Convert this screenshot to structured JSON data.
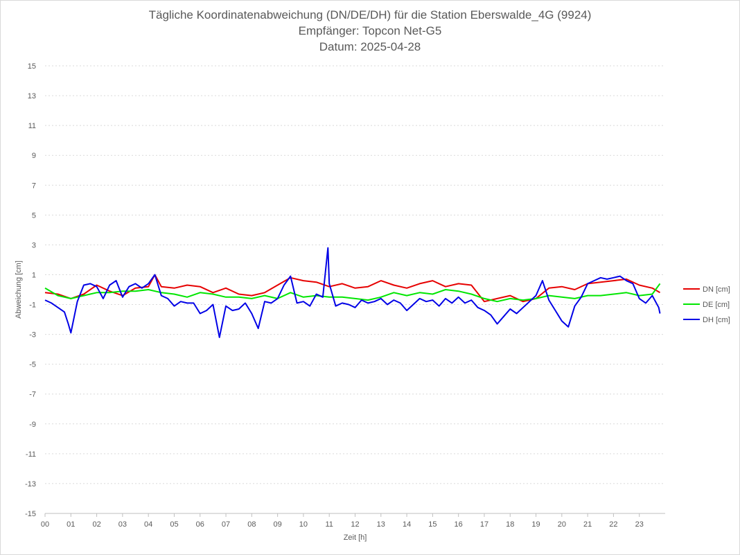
{
  "chart_data": {
    "type": "line",
    "title": "Tägliche Koordinatenabweichung (DN/DE/DH) für die Station Eberswalde_4G (9924)",
    "subtitle_1": "Empfänger: Topcon Net-G5",
    "subtitle_2": "Datum: 2025-04-28",
    "xlabel": "Zeit [h]",
    "ylabel": "Abweichung [cm]",
    "xlim": [
      0,
      24
    ],
    "ylim": [
      -15,
      15
    ],
    "x_ticks": [
      "00",
      "01",
      "02",
      "03",
      "04",
      "05",
      "06",
      "07",
      "08",
      "09",
      "10",
      "11",
      "12",
      "13",
      "14",
      "15",
      "16",
      "17",
      "18",
      "19",
      "20",
      "21",
      "22",
      "23"
    ],
    "y_ticks": [
      15,
      13,
      11,
      9,
      7,
      5,
      3,
      1,
      -1,
      -3,
      -5,
      -7,
      -9,
      -11,
      -13,
      -15
    ],
    "grid": true,
    "legend_position": "right",
    "series": [
      {
        "name": "DN [cm]",
        "color": "#e60000",
        "x": [
          0,
          0.5,
          1,
          1.5,
          2,
          2.5,
          3,
          3.5,
          4,
          4.25,
          4.5,
          5,
          5.5,
          6,
          6.5,
          7,
          7.5,
          8,
          8.5,
          9,
          9.5,
          10,
          10.5,
          11,
          11.5,
          12,
          12.5,
          13,
          13.5,
          14,
          14.5,
          15,
          15.5,
          16,
          16.5,
          17,
          17.5,
          18,
          18.5,
          19,
          19.5,
          20,
          20.5,
          21,
          21.5,
          22,
          22.5,
          23,
          23.5,
          23.8
        ],
        "y": [
          -0.2,
          -0.3,
          -0.6,
          -0.3,
          0.3,
          -0.1,
          -0.4,
          0.1,
          0.2,
          1.0,
          0.2,
          0.1,
          0.3,
          0.2,
          -0.2,
          0.1,
          -0.3,
          -0.4,
          -0.2,
          0.3,
          0.8,
          0.6,
          0.5,
          0.2,
          0.4,
          0.1,
          0.2,
          0.6,
          0.3,
          0.1,
          0.4,
          0.6,
          0.2,
          0.4,
          0.3,
          -0.8,
          -0.6,
          -0.4,
          -0.8,
          -0.6,
          0.1,
          0.2,
          0.0,
          0.4,
          0.5,
          0.6,
          0.7,
          0.3,
          0.1,
          -0.2
        ]
      },
      {
        "name": "DE [cm]",
        "color": "#00e600",
        "x": [
          0,
          0.5,
          1,
          1.5,
          2,
          2.5,
          3,
          3.5,
          4,
          4.5,
          5,
          5.5,
          6,
          6.5,
          7,
          7.5,
          8,
          8.5,
          9,
          9.5,
          10,
          10.5,
          11,
          11.5,
          12,
          12.5,
          13,
          13.5,
          14,
          14.5,
          15,
          15.5,
          16,
          16.5,
          17,
          17.5,
          18,
          18.5,
          19,
          19.5,
          20,
          20.5,
          21,
          21.5,
          22,
          22.5,
          23,
          23.5,
          23.8
        ],
        "y": [
          0.1,
          -0.4,
          -0.6,
          -0.4,
          -0.2,
          -0.2,
          -0.1,
          -0.1,
          0.0,
          -0.2,
          -0.3,
          -0.5,
          -0.2,
          -0.3,
          -0.5,
          -0.5,
          -0.6,
          -0.4,
          -0.6,
          -0.2,
          -0.5,
          -0.4,
          -0.5,
          -0.5,
          -0.6,
          -0.7,
          -0.5,
          -0.2,
          -0.4,
          -0.2,
          -0.3,
          0.0,
          -0.1,
          -0.3,
          -0.6,
          -0.8,
          -0.6,
          -0.7,
          -0.6,
          -0.4,
          -0.5,
          -0.6,
          -0.4,
          -0.4,
          -0.3,
          -0.2,
          -0.4,
          -0.3,
          0.4
        ]
      },
      {
        "name": "DH [cm]",
        "color": "#0000e6",
        "x": [
          0,
          0.25,
          0.5,
          0.75,
          0.9,
          1.0,
          1.25,
          1.5,
          1.75,
          2.0,
          2.25,
          2.5,
          2.75,
          3.0,
          3.25,
          3.5,
          3.75,
          4.0,
          4.25,
          4.5,
          4.75,
          5.0,
          5.25,
          5.5,
          5.75,
          6.0,
          6.25,
          6.5,
          6.75,
          7.0,
          7.25,
          7.5,
          7.75,
          8.0,
          8.25,
          8.5,
          8.75,
          9.0,
          9.25,
          9.5,
          9.75,
          10.0,
          10.25,
          10.5,
          10.75,
          10.95,
          11.0,
          11.25,
          11.5,
          11.75,
          12.0,
          12.25,
          12.5,
          12.75,
          13.0,
          13.25,
          13.5,
          13.75,
          14.0,
          14.25,
          14.5,
          14.75,
          15.0,
          15.25,
          15.5,
          15.75,
          16.0,
          16.25,
          16.5,
          16.75,
          17.0,
          17.25,
          17.5,
          17.75,
          18.0,
          18.25,
          18.5,
          18.75,
          19.0,
          19.25,
          19.5,
          19.75,
          20.0,
          20.25,
          20.5,
          20.75,
          21.0,
          21.25,
          21.5,
          21.75,
          22.0,
          22.25,
          22.5,
          22.75,
          23.0,
          23.25,
          23.5,
          23.75,
          23.8
        ],
        "y": [
          -0.7,
          -0.9,
          -1.2,
          -1.5,
          -2.3,
          -2.9,
          -0.8,
          0.3,
          0.4,
          0.2,
          -0.6,
          0.3,
          0.6,
          -0.5,
          0.2,
          0.4,
          0.1,
          0.4,
          1.0,
          -0.4,
          -0.6,
          -1.1,
          -0.8,
          -0.9,
          -0.9,
          -1.6,
          -1.4,
          -1.0,
          -3.2,
          -1.1,
          -1.4,
          -1.3,
          -0.9,
          -1.6,
          -2.6,
          -0.8,
          -0.9,
          -0.6,
          0.3,
          0.9,
          -0.9,
          -0.8,
          -1.1,
          -0.3,
          -0.5,
          2.8,
          0.4,
          -1.1,
          -0.9,
          -1.0,
          -1.2,
          -0.7,
          -0.9,
          -0.8,
          -0.6,
          -1.0,
          -0.7,
          -0.9,
          -1.4,
          -1.0,
          -0.6,
          -0.8,
          -0.7,
          -1.1,
          -0.6,
          -0.9,
          -0.5,
          -0.9,
          -0.7,
          -1.2,
          -1.4,
          -1.7,
          -2.3,
          -1.8,
          -1.3,
          -1.6,
          -1.2,
          -0.8,
          -0.4,
          0.6,
          -0.7,
          -1.4,
          -2.1,
          -2.5,
          -1.1,
          -0.5,
          0.4,
          0.6,
          0.8,
          0.7,
          0.8,
          0.9,
          0.6,
          0.4,
          -0.6,
          -0.9,
          -0.4,
          -1.2,
          -1.6
        ]
      }
    ]
  }
}
